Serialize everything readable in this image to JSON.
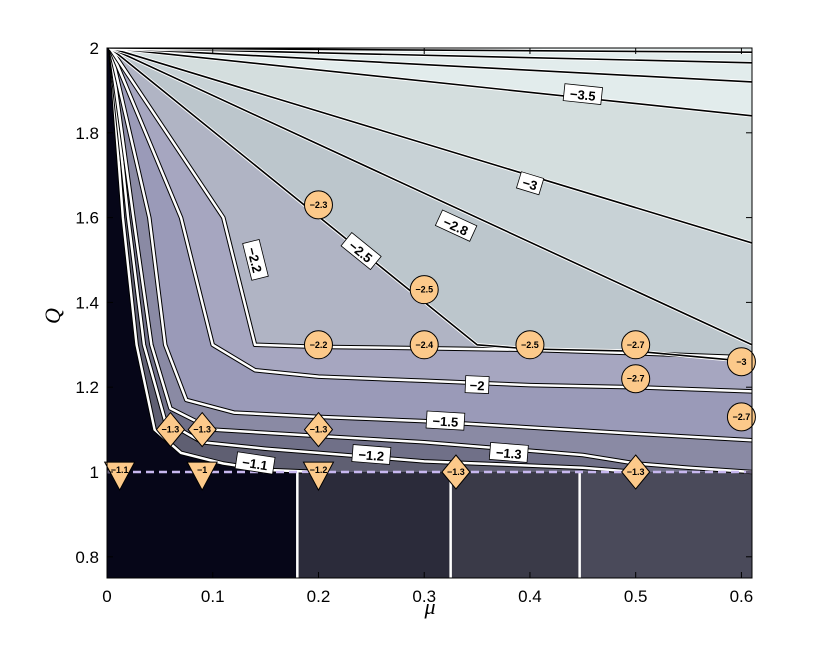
{
  "chart_data": {
    "type": "contour",
    "xlabel": "μ",
    "ylabel": "Q",
    "xlim": [
      0,
      0.61
    ],
    "ylim": [
      0.75,
      2.0
    ],
    "x_ticks": [
      "0",
      "0.1",
      "0.2",
      "0.3",
      "0.4",
      "0.5",
      "0.6"
    ],
    "y_ticks": [
      "0.8",
      "1",
      "1.2",
      "1.4",
      "1.6",
      "1.8",
      "2"
    ],
    "grid": false,
    "reference_line": {
      "y": 1.0,
      "style": "dashed",
      "color": "#c8b8f0"
    },
    "contour_lines": [
      {
        "level": "-1.1",
        "points": [
          [
            0.003,
            2.0
          ],
          [
            0.015,
            1.6
          ],
          [
            0.028,
            1.3
          ],
          [
            0.045,
            1.1
          ],
          [
            0.07,
            1.045
          ],
          [
            0.11,
            1.02
          ],
          [
            0.15,
            1.005
          ],
          [
            0.2,
            1.0
          ]
        ],
        "label_at": [
          0.14,
          1.02
        ]
      },
      {
        "level": "-1.2",
        "points": [
          [
            0.003,
            2.0
          ],
          [
            0.02,
            1.6
          ],
          [
            0.035,
            1.3
          ],
          [
            0.055,
            1.12
          ],
          [
            0.09,
            1.07
          ],
          [
            0.15,
            1.055
          ],
          [
            0.2,
            1.045
          ],
          [
            0.3,
            1.025
          ],
          [
            0.35,
            1.02
          ],
          [
            0.45,
            1.01
          ],
          [
            0.5,
            1.0
          ]
        ],
        "label_at": [
          0.25,
          1.04
        ]
      },
      {
        "level": "-1.3",
        "points": [
          [
            0.003,
            2.0
          ],
          [
            0.025,
            1.6
          ],
          [
            0.042,
            1.3
          ],
          [
            0.06,
            1.15
          ],
          [
            0.1,
            1.1
          ],
          [
            0.2,
            1.085
          ],
          [
            0.3,
            1.07
          ],
          [
            0.4,
            1.05
          ],
          [
            0.45,
            1.04
          ],
          [
            0.5,
            1.02
          ],
          [
            0.55,
            1.01
          ],
          [
            0.61,
            1.0
          ]
        ],
        "label_at": [
          0.38,
          1.045
        ]
      },
      {
        "level": "-1.5",
        "points": [
          [
            0.003,
            2.0
          ],
          [
            0.04,
            1.6
          ],
          [
            0.055,
            1.3
          ],
          [
            0.075,
            1.17
          ],
          [
            0.12,
            1.14
          ],
          [
            0.2,
            1.13
          ],
          [
            0.3,
            1.12
          ],
          [
            0.4,
            1.105
          ],
          [
            0.5,
            1.09
          ],
          [
            0.61,
            1.075
          ]
        ],
        "label_at": [
          0.32,
          1.12
        ]
      },
      {
        "level": "-2",
        "points": [
          [
            0.003,
            2.0
          ],
          [
            0.07,
            1.6
          ],
          [
            0.1,
            1.3
          ],
          [
            0.14,
            1.24
          ],
          [
            0.2,
            1.225
          ],
          [
            0.3,
            1.215
          ],
          [
            0.4,
            1.205
          ],
          [
            0.5,
            1.2
          ],
          [
            0.61,
            1.19
          ]
        ],
        "label_at": [
          0.35,
          1.205
        ]
      },
      {
        "level": "-2.2",
        "points": [
          [
            0.003,
            2.0
          ],
          [
            0.11,
            1.6
          ],
          [
            0.14,
            1.3
          ],
          [
            0.2,
            1.295
          ],
          [
            0.3,
            1.292
          ],
          [
            0.4,
            1.288
          ],
          [
            0.5,
            1.28
          ],
          [
            0.61,
            1.27
          ]
        ],
        "label_at": [
          0.14,
          1.5
        ]
      },
      {
        "level": "-2.5",
        "points": [
          [
            0.003,
            2.0
          ],
          [
            0.35,
            1.3
          ],
          [
            0.4,
            1.29
          ],
          [
            0.5,
            1.285
          ],
          [
            0.61,
            1.26
          ]
        ],
        "label_at": [
          0.24,
          1.52
        ]
      },
      {
        "level": "-2.8",
        "points": [
          [
            0.003,
            2.0
          ],
          [
            0.61,
            1.3
          ]
        ],
        "label_at": [
          0.33,
          1.58
        ]
      },
      {
        "level": "-3",
        "points": [
          [
            0.003,
            2.0
          ],
          [
            0.61,
            1.54
          ]
        ],
        "label_at": [
          0.4,
          1.68
        ]
      },
      {
        "level": "-3.5",
        "points": [
          [
            0.003,
            2.0
          ],
          [
            0.61,
            1.84
          ]
        ],
        "label_at": [
          0.45,
          1.89
        ]
      },
      {
        "level": "",
        "points": [
          [
            0.003,
            2.0
          ],
          [
            0.61,
            1.92
          ]
        ],
        "label_at": null
      },
      {
        "level": "",
        "points": [
          [
            0.003,
            2.0
          ],
          [
            0.61,
            1.965
          ]
        ],
        "label_at": null
      },
      {
        "level": "",
        "points": [
          [
            0.003,
            2.0
          ],
          [
            0.61,
            1.99
          ]
        ],
        "label_at": null
      }
    ],
    "vertical_boundaries_below_Q1": [
      0.18,
      0.325,
      0.447
    ],
    "markers": [
      {
        "shape": "circle",
        "x": 0.2,
        "y": 1.63,
        "label": "-2.3"
      },
      {
        "shape": "circle",
        "x": 0.3,
        "y": 1.43,
        "label": "-2.5"
      },
      {
        "shape": "circle",
        "x": 0.2,
        "y": 1.3,
        "label": "-2.2"
      },
      {
        "shape": "circle",
        "x": 0.3,
        "y": 1.3,
        "label": "-2.4"
      },
      {
        "shape": "circle",
        "x": 0.4,
        "y": 1.3,
        "label": "-2.5"
      },
      {
        "shape": "circle",
        "x": 0.5,
        "y": 1.3,
        "label": "-2.7"
      },
      {
        "shape": "circle",
        "x": 0.5,
        "y": 1.22,
        "label": "-2.7"
      },
      {
        "shape": "circle",
        "x": 0.6,
        "y": 1.26,
        "label": "-3"
      },
      {
        "shape": "circle",
        "x": 0.6,
        "y": 1.13,
        "label": "-2.7"
      },
      {
        "shape": "diamond",
        "x": 0.06,
        "y": 1.1,
        "label": "-1.3"
      },
      {
        "shape": "diamond",
        "x": 0.09,
        "y": 1.1,
        "label": "-1.3"
      },
      {
        "shape": "diamond",
        "x": 0.2,
        "y": 1.1,
        "label": "-1.3"
      },
      {
        "shape": "diamond",
        "x": 0.33,
        "y": 1.0,
        "label": "-1.3"
      },
      {
        "shape": "diamond",
        "x": 0.5,
        "y": 1.0,
        "label": "-1.3"
      },
      {
        "shape": "triangle",
        "x": 0.012,
        "y": 0.995,
        "label": "-1.1"
      },
      {
        "shape": "triangle",
        "x": 0.09,
        "y": 0.995,
        "label": "-1"
      },
      {
        "shape": "triangle",
        "x": 0.2,
        "y": 0.995,
        "label": "-1.2"
      }
    ]
  },
  "colors": {
    "marker_fill": "#fcc98a",
    "line": "#000000",
    "white_line": "#ffffff",
    "bands": [
      "#060618",
      "#2b2b3a",
      "#3a3a48",
      "#4a4a5a",
      "#5f5f72",
      "#707088",
      "#8a8aa4",
      "#9a9ab8",
      "#a6a6c0",
      "#b0b4c4",
      "#bcc6cc",
      "#c8d2d6",
      "#d4dede",
      "#e2ecec"
    ]
  }
}
